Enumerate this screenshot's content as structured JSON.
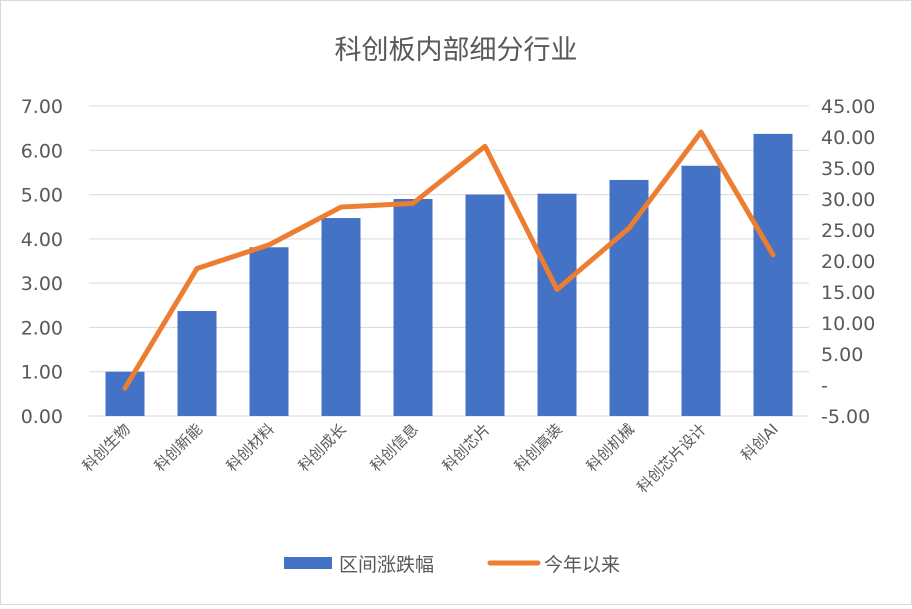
{
  "chart_data": {
    "type": "bar",
    "title": "科创板内部细分行业",
    "categories": [
      "科创生物",
      "科创新能",
      "科创材料",
      "科创成长",
      "科创信息",
      "科创芯片",
      "科创高装",
      "科创机械",
      "科创芯片设计",
      "科创AI"
    ],
    "series": [
      {
        "name": "区间涨跌幅",
        "type": "bar",
        "axis": "left",
        "color": "#4472C4",
        "values": [
          1.0,
          2.37,
          3.81,
          4.47,
          4.9,
          5.0,
          5.02,
          5.33,
          5.65,
          6.37
        ]
      },
      {
        "name": "今年以来",
        "type": "line",
        "axis": "right",
        "color": "#ED7D31",
        "values": [
          -0.5,
          18.8,
          22.6,
          28.7,
          29.3,
          38.5,
          15.4,
          25.3,
          40.8,
          21.0
        ]
      }
    ],
    "y_left": {
      "ylim": [
        0,
        7
      ],
      "ticks": [
        "0.00",
        "1.00",
        "2.00",
        "3.00",
        "4.00",
        "5.00",
        "6.00",
        "7.00"
      ]
    },
    "y_right": {
      "ylim": [
        -5,
        45
      ],
      "ticks": [
        "-5.00",
        "-",
        "5.00",
        "10.00",
        "15.00",
        "20.00",
        "25.00",
        "30.00",
        "35.00",
        "40.00",
        "45.00"
      ]
    },
    "grid": true,
    "legend_position": "bottom"
  }
}
